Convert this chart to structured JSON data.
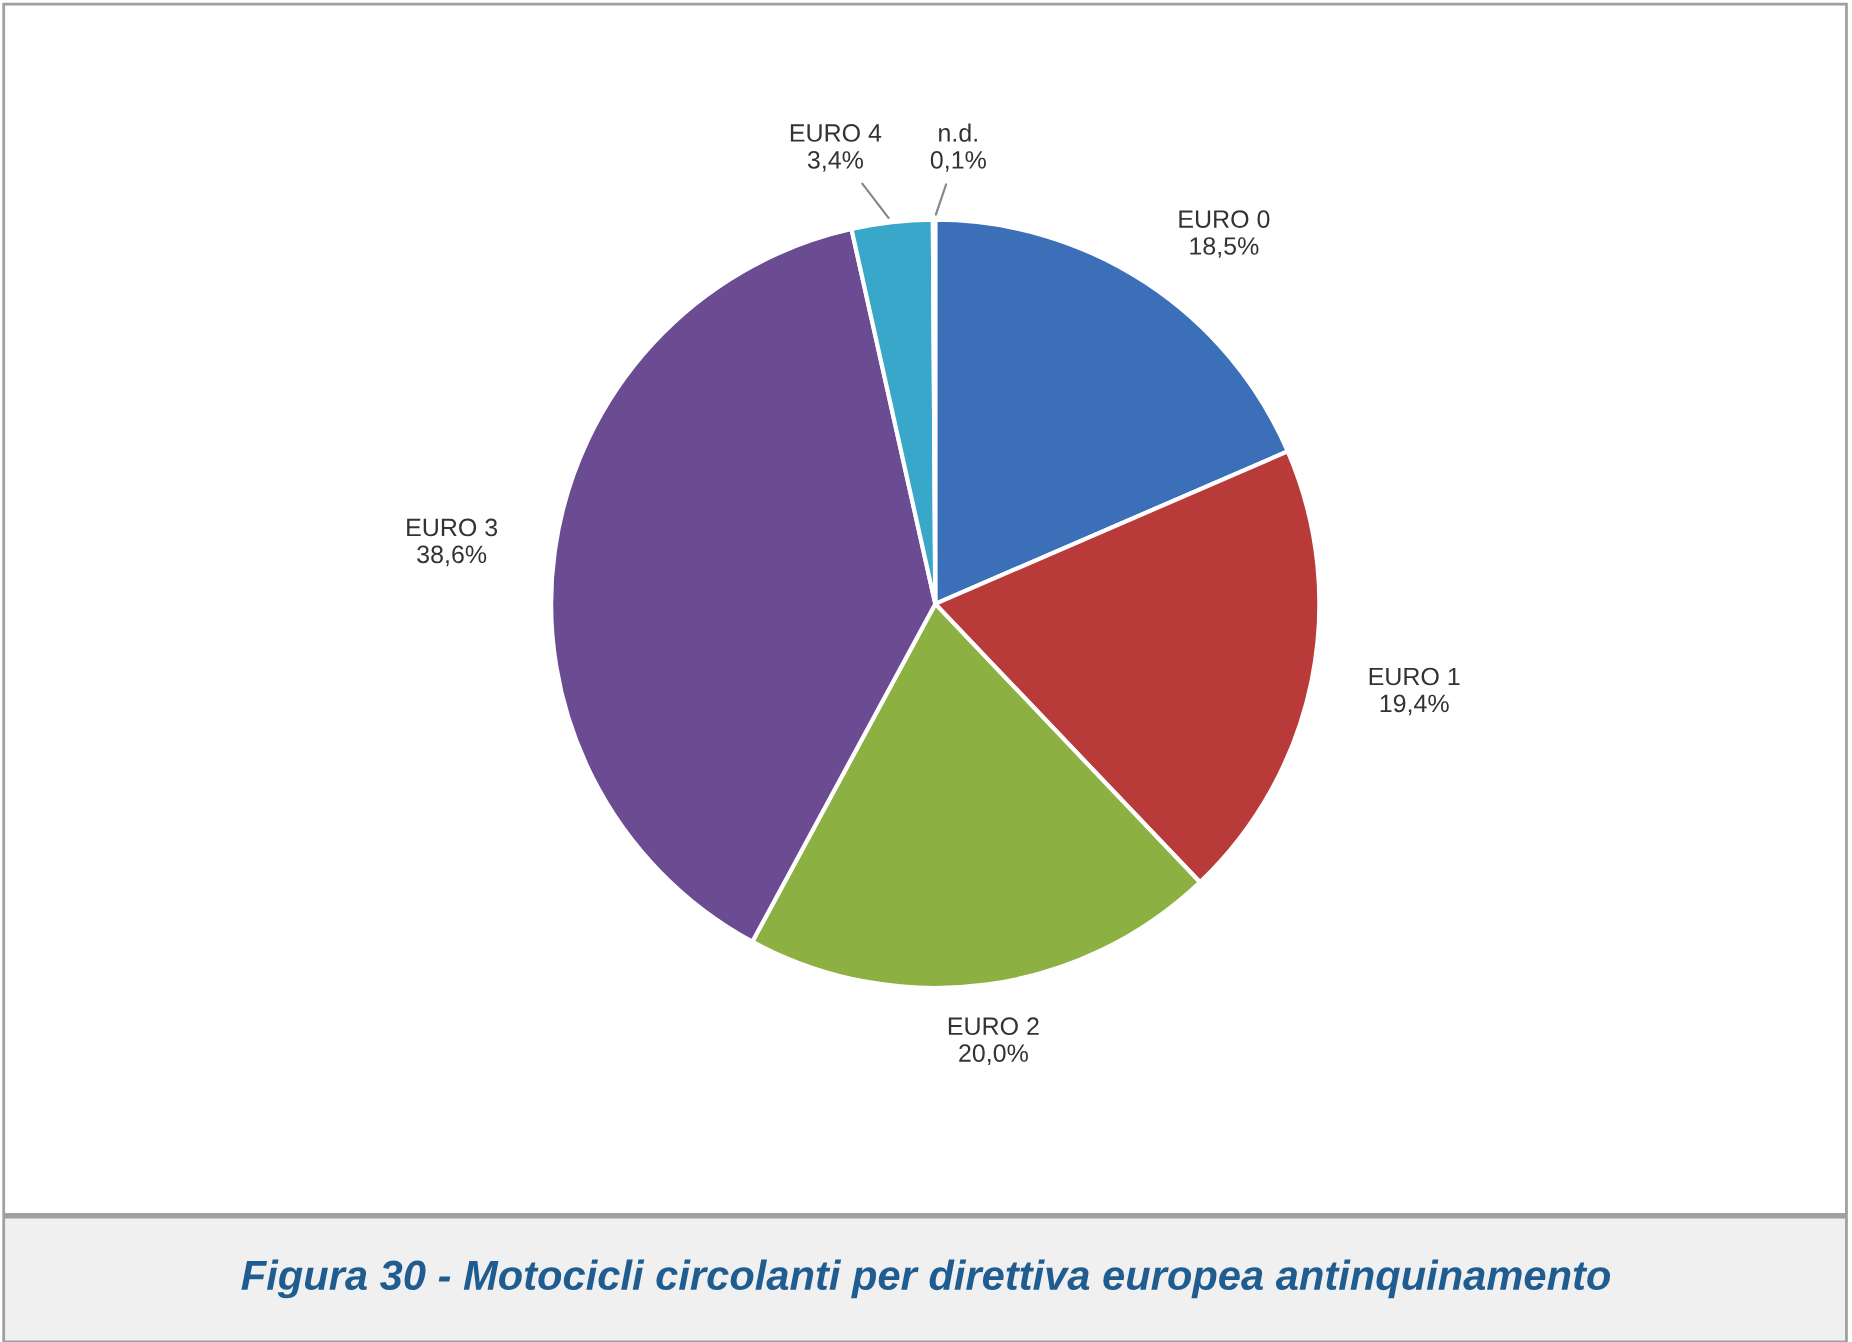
{
  "chart_data": {
    "type": "pie",
    "categories": [
      "EURO 0",
      "EURO 1",
      "EURO 2",
      "EURO 3",
      "EURO 4",
      "n.d."
    ],
    "values": [
      18.5,
      19.4,
      20.0,
      38.6,
      3.4,
      0.1
    ],
    "value_labels": [
      "18,5%",
      "19,4%",
      "20,0%",
      "38,6%",
      "3,4%",
      "0,1%"
    ],
    "colors": [
      "#3b70b9",
      "#b93b39",
      "#8db042",
      "#6b4c93",
      "#38a7c9",
      "#9ab8d8"
    ],
    "legend": false,
    "annotations": [
      "Figura 30 - Motocicli circolanti per direttiva europea antinquinamento"
    ]
  }
}
